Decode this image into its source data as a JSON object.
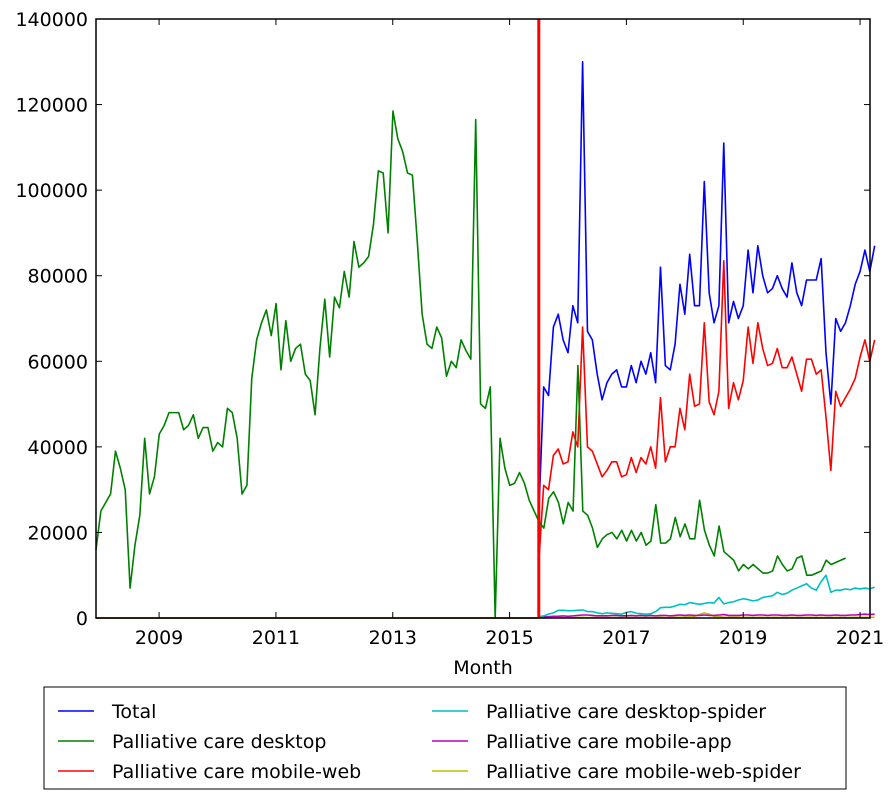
{
  "chart_data": {
    "type": "line",
    "title": "",
    "xlabel": "Month",
    "ylabel": "",
    "xlim": [
      2007.92,
      2021.17
    ],
    "ylim": [
      0,
      140000
    ],
    "x_ticks": [
      "2009",
      "2011",
      "2013",
      "2015",
      "2017",
      "2019",
      "2021"
    ],
    "y_ticks": [
      "0",
      "20000",
      "40000",
      "60000",
      "80000",
      "100000",
      "120000",
      "140000"
    ],
    "grid": false,
    "legend_position": "bottom",
    "vertical_marker": {
      "x": 2015.5,
      "color": "#ff0000"
    },
    "series": [
      {
        "name": "Total",
        "color": "#0000ff",
        "x_start": 2015.5,
        "values": [
          24000,
          54000,
          52000,
          68000,
          71000,
          65000,
          62000,
          73000,
          69000,
          130000,
          67000,
          65000,
          57000,
          51000,
          55000,
          57000,
          58000,
          54000,
          54000,
          59000,
          55000,
          60000,
          57000,
          62000,
          55000,
          82000,
          59000,
          58000,
          64000,
          78000,
          71000,
          85000,
          73000,
          73000,
          102000,
          76000,
          69000,
          73000,
          111000,
          69000,
          74000,
          70000,
          73000,
          86000,
          76000,
          87000,
          80000,
          76000,
          77000,
          80000,
          77000,
          75000,
          83000,
          76000,
          73000,
          79000,
          79000,
          79000,
          84000,
          62000,
          50000,
          70000,
          67000,
          69000,
          73000,
          78000,
          81000,
          86000,
          81000,
          87000
        ]
      },
      {
        "name": "Palliative care desktop",
        "color": "#008000",
        "x_start": 2007.92,
        "values": [
          16000,
          25000,
          27000,
          29000,
          39000,
          35000,
          30000,
          7000,
          17000,
          24000,
          42000,
          29000,
          33000,
          43000,
          45000,
          48000,
          48000,
          48000,
          44000,
          45000,
          47500,
          42000,
          44500,
          44500,
          39000,
          41000,
          40000,
          49000,
          48000,
          42000,
          29000,
          31000,
          56000,
          65000,
          69000,
          72000,
          66000,
          73500,
          58000,
          69500,
          60000,
          63000,
          64000,
          57000,
          55500,
          47500,
          63000,
          74500,
          61000,
          75000,
          72500,
          81000,
          75000,
          88000,
          82000,
          83000,
          84500,
          92000,
          104500,
          104000,
          90000,
          118500,
          112000,
          109000,
          104000,
          103500,
          88000,
          71000,
          64000,
          63000,
          68000,
          65500,
          56500,
          60000,
          58500,
          65000,
          62500,
          60500,
          116500,
          50000,
          49000,
          54000,
          0,
          42000,
          35000,
          31000,
          31500,
          34000,
          31500,
          27500,
          25000,
          22500,
          21000,
          28000,
          29500,
          27000,
          22000,
          27000,
          25000,
          59000,
          25000,
          24000,
          21000,
          16500,
          18500,
          19500,
          20000,
          18500,
          20500,
          18000,
          20500,
          18000,
          20000,
          17000,
          18000,
          26500,
          17500,
          17500,
          18500,
          23500,
          19000,
          22000,
          18500,
          18500,
          27500,
          20500,
          17000,
          14500,
          21500,
          15500,
          14500,
          13500,
          11000,
          12500,
          11500,
          12500,
          11500,
          10500,
          10500,
          11000,
          14500,
          12500,
          11000,
          11500,
          14000,
          14500,
          10000,
          10000,
          10500,
          11000,
          13500,
          12500,
          13000,
          13500,
          14000
        ]
      },
      {
        "name": "Palliative care mobile-web",
        "color": "#ff0000",
        "x_start": 2015.5,
        "values": [
          13000,
          31000,
          30000,
          38000,
          39500,
          36000,
          36500,
          43500,
          40000,
          68000,
          40000,
          39000,
          36000,
          33000,
          34500,
          36500,
          36500,
          33000,
          33500,
          37500,
          34000,
          37500,
          36000,
          40000,
          35000,
          51500,
          36500,
          40000,
          40000,
          49000,
          44000,
          57000,
          49500,
          50000,
          69000,
          50500,
          47500,
          53000,
          83500,
          49000,
          55000,
          51000,
          55500,
          68000,
          59500,
          69000,
          63000,
          59000,
          59500,
          63000,
          58500,
          58500,
          61000,
          57000,
          53000,
          60500,
          60500,
          57000,
          58000,
          47000,
          34500,
          53000,
          49500,
          51500,
          53500,
          56000,
          61000,
          65000,
          60000,
          65000
        ]
      },
      {
        "name": "Palliative care desktop-spider",
        "color": "#00bfbf",
        "x_start": 2015.5,
        "values": [
          300,
          500,
          900,
          1200,
          1800,
          1800,
          1700,
          1700,
          1800,
          1900,
          1500,
          1500,
          1200,
          1000,
          1200,
          1100,
          1000,
          900,
          1300,
          1500,
          1100,
          1000,
          900,
          1000,
          1500,
          2400,
          2500,
          2500,
          2800,
          3200,
          3100,
          3600,
          3400,
          3200,
          3400,
          3600,
          3500,
          4800,
          3300,
          3600,
          3800,
          4200,
          4500,
          4300,
          4000,
          4200,
          4800,
          5000,
          5200,
          6000,
          5500,
          5800,
          6500,
          7000,
          7500,
          8000,
          7000,
          6500,
          8500,
          10000,
          6000,
          6500,
          6500,
          6800,
          6600,
          7000,
          6800,
          7000,
          6800,
          7200
        ]
      },
      {
        "name": "Palliative care mobile-app",
        "color": "#bf00bf",
        "x_start": 2015.5,
        "values": [
          200,
          300,
          300,
          400,
          400,
          500,
          400,
          500,
          600,
          700,
          700,
          600,
          500,
          500,
          500,
          600,
          600,
          500,
          500,
          600,
          500,
          600,
          500,
          600,
          500,
          600,
          600,
          500,
          600,
          700,
          600,
          700,
          600,
          600,
          700,
          600,
          600,
          700,
          800,
          600,
          600,
          600,
          700,
          700,
          600,
          700,
          700,
          600,
          700,
          700,
          600,
          600,
          700,
          600,
          600,
          700,
          700,
          600,
          700,
          600,
          600,
          700,
          600,
          600,
          700,
          700,
          800,
          900,
          800,
          900
        ]
      },
      {
        "name": "Palliative care mobile-web-spider",
        "color": "#bfbf00",
        "x_start": 2015.5,
        "values": [
          0,
          50,
          50,
          80,
          100,
          120,
          100,
          100,
          120,
          150,
          120,
          120,
          100,
          100,
          100,
          120,
          120,
          100,
          100,
          120,
          100,
          120,
          100,
          120,
          100,
          150,
          120,
          120,
          150,
          200,
          180,
          300,
          400,
          800,
          1200,
          900,
          400,
          300,
          200,
          150,
          150,
          150,
          150,
          150,
          120,
          150,
          150,
          120,
          150,
          150,
          120,
          120,
          150,
          120,
          120,
          150,
          150,
          120,
          150,
          120,
          120,
          150,
          120,
          120,
          150,
          150,
          150,
          150,
          150,
          150
        ]
      }
    ]
  }
}
